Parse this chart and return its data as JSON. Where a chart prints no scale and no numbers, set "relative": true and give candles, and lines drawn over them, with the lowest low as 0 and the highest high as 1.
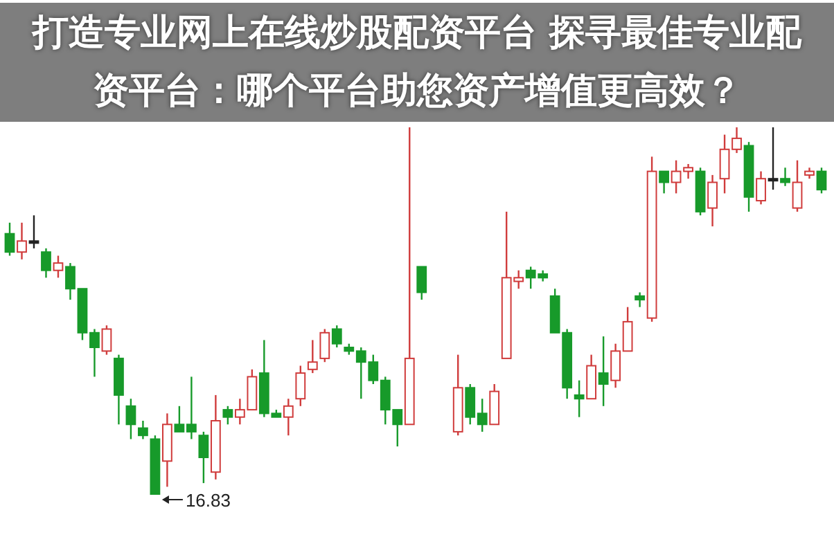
{
  "chart_data": {
    "type": "candlestick",
    "relative": true,
    "title": "打造专业网上在线炒股配资平台 探寻最佳专业配资平台：哪个平台助您资产增值更高效？",
    "annotations": [
      "16.83"
    ],
    "categories": [
      null,
      null,
      null,
      null,
      null,
      null,
      null,
      null,
      null,
      null,
      null,
      null,
      null,
      null,
      null,
      null,
      null,
      null,
      null,
      null,
      null,
      null,
      null,
      null,
      null,
      null,
      null,
      null,
      null,
      null,
      null,
      null,
      null,
      null,
      null,
      null,
      null,
      null,
      null,
      null,
      null,
      null,
      null,
      null,
      null,
      null,
      null,
      null,
      null,
      null,
      null,
      null,
      null,
      null,
      null,
      null,
      null,
      null,
      null,
      null,
      null,
      null,
      null,
      null,
      null,
      null,
      null,
      null
    ],
    "ohlc": [
      [
        0.71,
        0.74,
        0.65,
        0.66
      ],
      [
        0.66,
        0.74,
        0.64,
        0.69
      ],
      [
        0.69,
        0.76,
        0.67,
        0.69
      ],
      [
        0.66,
        0.67,
        0.59,
        0.61
      ],
      [
        0.61,
        0.65,
        0.59,
        0.63
      ],
      [
        0.62,
        0.63,
        0.53,
        0.56
      ],
      [
        0.56,
        0.56,
        0.42,
        0.44
      ],
      [
        0.44,
        0.45,
        0.32,
        0.4
      ],
      [
        0.39,
        0.46,
        0.38,
        0.45
      ],
      [
        0.37,
        0.38,
        0.19,
        0.27
      ],
      [
        0.24,
        0.26,
        0.15,
        0.19
      ],
      [
        0.18,
        0.2,
        0.15,
        0.16
      ],
      [
        0.15,
        0.16,
        0.0,
        0.0
      ],
      [
        0.09,
        0.22,
        0.02,
        0.19
      ],
      [
        0.19,
        0.24,
        0.17,
        0.17
      ],
      [
        0.19,
        0.32,
        0.15,
        0.17
      ],
      [
        0.16,
        0.17,
        0.03,
        0.1
      ],
      [
        0.06,
        0.27,
        0.04,
        0.2
      ],
      [
        0.23,
        0.24,
        0.19,
        0.21
      ],
      [
        0.21,
        0.26,
        0.19,
        0.23
      ],
      [
        0.23,
        0.34,
        0.23,
        0.32
      ],
      [
        0.33,
        0.42,
        0.21,
        0.22
      ],
      [
        0.22,
        0.23,
        0.21,
        0.21
      ],
      [
        0.21,
        0.26,
        0.16,
        0.24
      ],
      [
        0.26,
        0.35,
        0.24,
        0.33
      ],
      [
        0.34,
        0.42,
        0.33,
        0.36
      ],
      [
        0.37,
        0.45,
        0.36,
        0.44
      ],
      [
        0.45,
        0.46,
        0.4,
        0.41
      ],
      [
        0.4,
        0.41,
        0.38,
        0.39
      ],
      [
        0.39,
        0.4,
        0.26,
        0.36
      ],
      [
        0.36,
        0.38,
        0.3,
        0.31
      ],
      [
        0.31,
        0.32,
        0.19,
        0.23
      ],
      [
        0.23,
        0.23,
        0.13,
        0.19
      ],
      [
        0.19,
        1.0,
        0.19,
        0.37
      ],
      [
        0.62,
        0.62,
        0.53,
        0.55
      ],
      null,
      null,
      [
        0.17,
        0.38,
        0.16,
        0.29
      ],
      [
        0.29,
        0.3,
        0.19,
        0.21
      ],
      [
        0.22,
        0.26,
        0.17,
        0.19
      ],
      [
        0.19,
        0.3,
        0.19,
        0.28
      ],
      [
        0.37,
        0.77,
        0.37,
        0.59
      ],
      [
        0.58,
        0.61,
        0.56,
        0.59
      ],
      [
        0.61,
        0.62,
        0.56,
        0.59
      ],
      [
        0.6,
        0.61,
        0.58,
        0.59
      ],
      [
        0.54,
        0.56,
        0.44,
        0.44
      ],
      [
        0.44,
        0.45,
        0.26,
        0.29
      ],
      [
        0.27,
        0.31,
        0.21,
        0.26
      ],
      [
        0.26,
        0.38,
        0.26,
        0.35
      ],
      [
        0.33,
        0.43,
        0.24,
        0.3
      ],
      [
        0.31,
        0.41,
        0.29,
        0.39
      ],
      [
        0.39,
        0.51,
        0.39,
        0.47
      ],
      [
        0.54,
        0.55,
        0.51,
        0.53
      ],
      [
        0.48,
        0.92,
        0.47,
        0.88
      ],
      [
        0.88,
        0.88,
        0.82,
        0.85
      ],
      [
        0.85,
        0.91,
        0.82,
        0.88
      ],
      [
        0.88,
        0.9,
        0.86,
        0.89
      ],
      [
        0.88,
        0.89,
        0.76,
        0.77
      ],
      [
        0.78,
        0.87,
        0.73,
        0.85
      ],
      [
        0.86,
        0.98,
        0.82,
        0.94
      ],
      [
        0.94,
        1.0,
        0.93,
        0.97
      ],
      [
        0.95,
        0.96,
        0.77,
        0.81
      ],
      [
        0.8,
        0.88,
        0.79,
        0.86
      ],
      [
        0.86,
        1.0,
        0.83,
        0.86
      ],
      [
        0.86,
        0.89,
        0.84,
        0.85
      ],
      [
        0.78,
        0.91,
        0.77,
        0.85
      ],
      [
        0.87,
        0.89,
        0.86,
        0.88
      ],
      [
        0.88,
        0.89,
        0.82,
        0.83
      ]
    ]
  }
}
